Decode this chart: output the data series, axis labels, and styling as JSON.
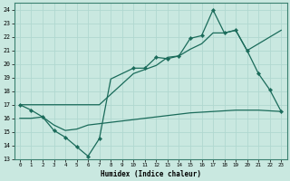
{
  "xlabel": "Humidex (Indice chaleur)",
  "xlim": [
    -0.5,
    23.5
  ],
  "ylim": [
    13,
    24.5
  ],
  "yticks": [
    13,
    14,
    15,
    16,
    17,
    18,
    19,
    20,
    21,
    22,
    23,
    24
  ],
  "xticks": [
    0,
    1,
    2,
    3,
    4,
    5,
    6,
    7,
    8,
    9,
    10,
    11,
    12,
    13,
    14,
    15,
    16,
    17,
    18,
    19,
    20,
    21,
    22,
    23
  ],
  "bg_color": "#c9e8e0",
  "line_color": "#1a6b5a",
  "grid_color": "#b0d8d0",
  "line1_x": [
    0,
    1,
    2,
    3,
    4,
    5,
    6,
    7,
    8,
    9,
    10,
    11,
    12,
    13,
    14,
    15,
    16,
    17,
    18,
    19,
    20,
    21,
    22,
    23
  ],
  "line1_y": [
    17.0,
    16.6,
    16.1,
    15.1,
    14.6,
    13.9,
    13.2,
    14.5,
    18.9,
    19.3,
    19.7,
    19.7,
    20.5,
    20.4,
    20.6,
    21.9,
    22.1,
    24.0,
    22.3,
    22.5,
    21.0,
    19.3,
    18.1,
    16.5
  ],
  "line1_markers": [
    1,
    1,
    1,
    1,
    1,
    1,
    1,
    1,
    0,
    0,
    1,
    1,
    1,
    1,
    1,
    1,
    1,
    1,
    1,
    1,
    1,
    1,
    1,
    1
  ],
  "line2_x": [
    0,
    7,
    10,
    11,
    12,
    13,
    14,
    15,
    16,
    17,
    18,
    19,
    20,
    23
  ],
  "line2_y": [
    17.0,
    17.0,
    19.3,
    19.6,
    19.9,
    20.5,
    20.6,
    21.1,
    21.5,
    22.3,
    22.3,
    22.5,
    21.0,
    22.5
  ],
  "line3_x": [
    0,
    1,
    2,
    3,
    4,
    5,
    6,
    7,
    8,
    9,
    10,
    11,
    12,
    13,
    14,
    15,
    16,
    17,
    18,
    19,
    20,
    21,
    22,
    23
  ],
  "line3_y": [
    16.0,
    16.0,
    16.1,
    15.5,
    15.1,
    15.2,
    15.5,
    15.6,
    15.7,
    15.8,
    15.9,
    16.0,
    16.1,
    16.2,
    16.3,
    16.4,
    16.45,
    16.5,
    16.55,
    16.6,
    16.6,
    16.6,
    16.55,
    16.5
  ]
}
